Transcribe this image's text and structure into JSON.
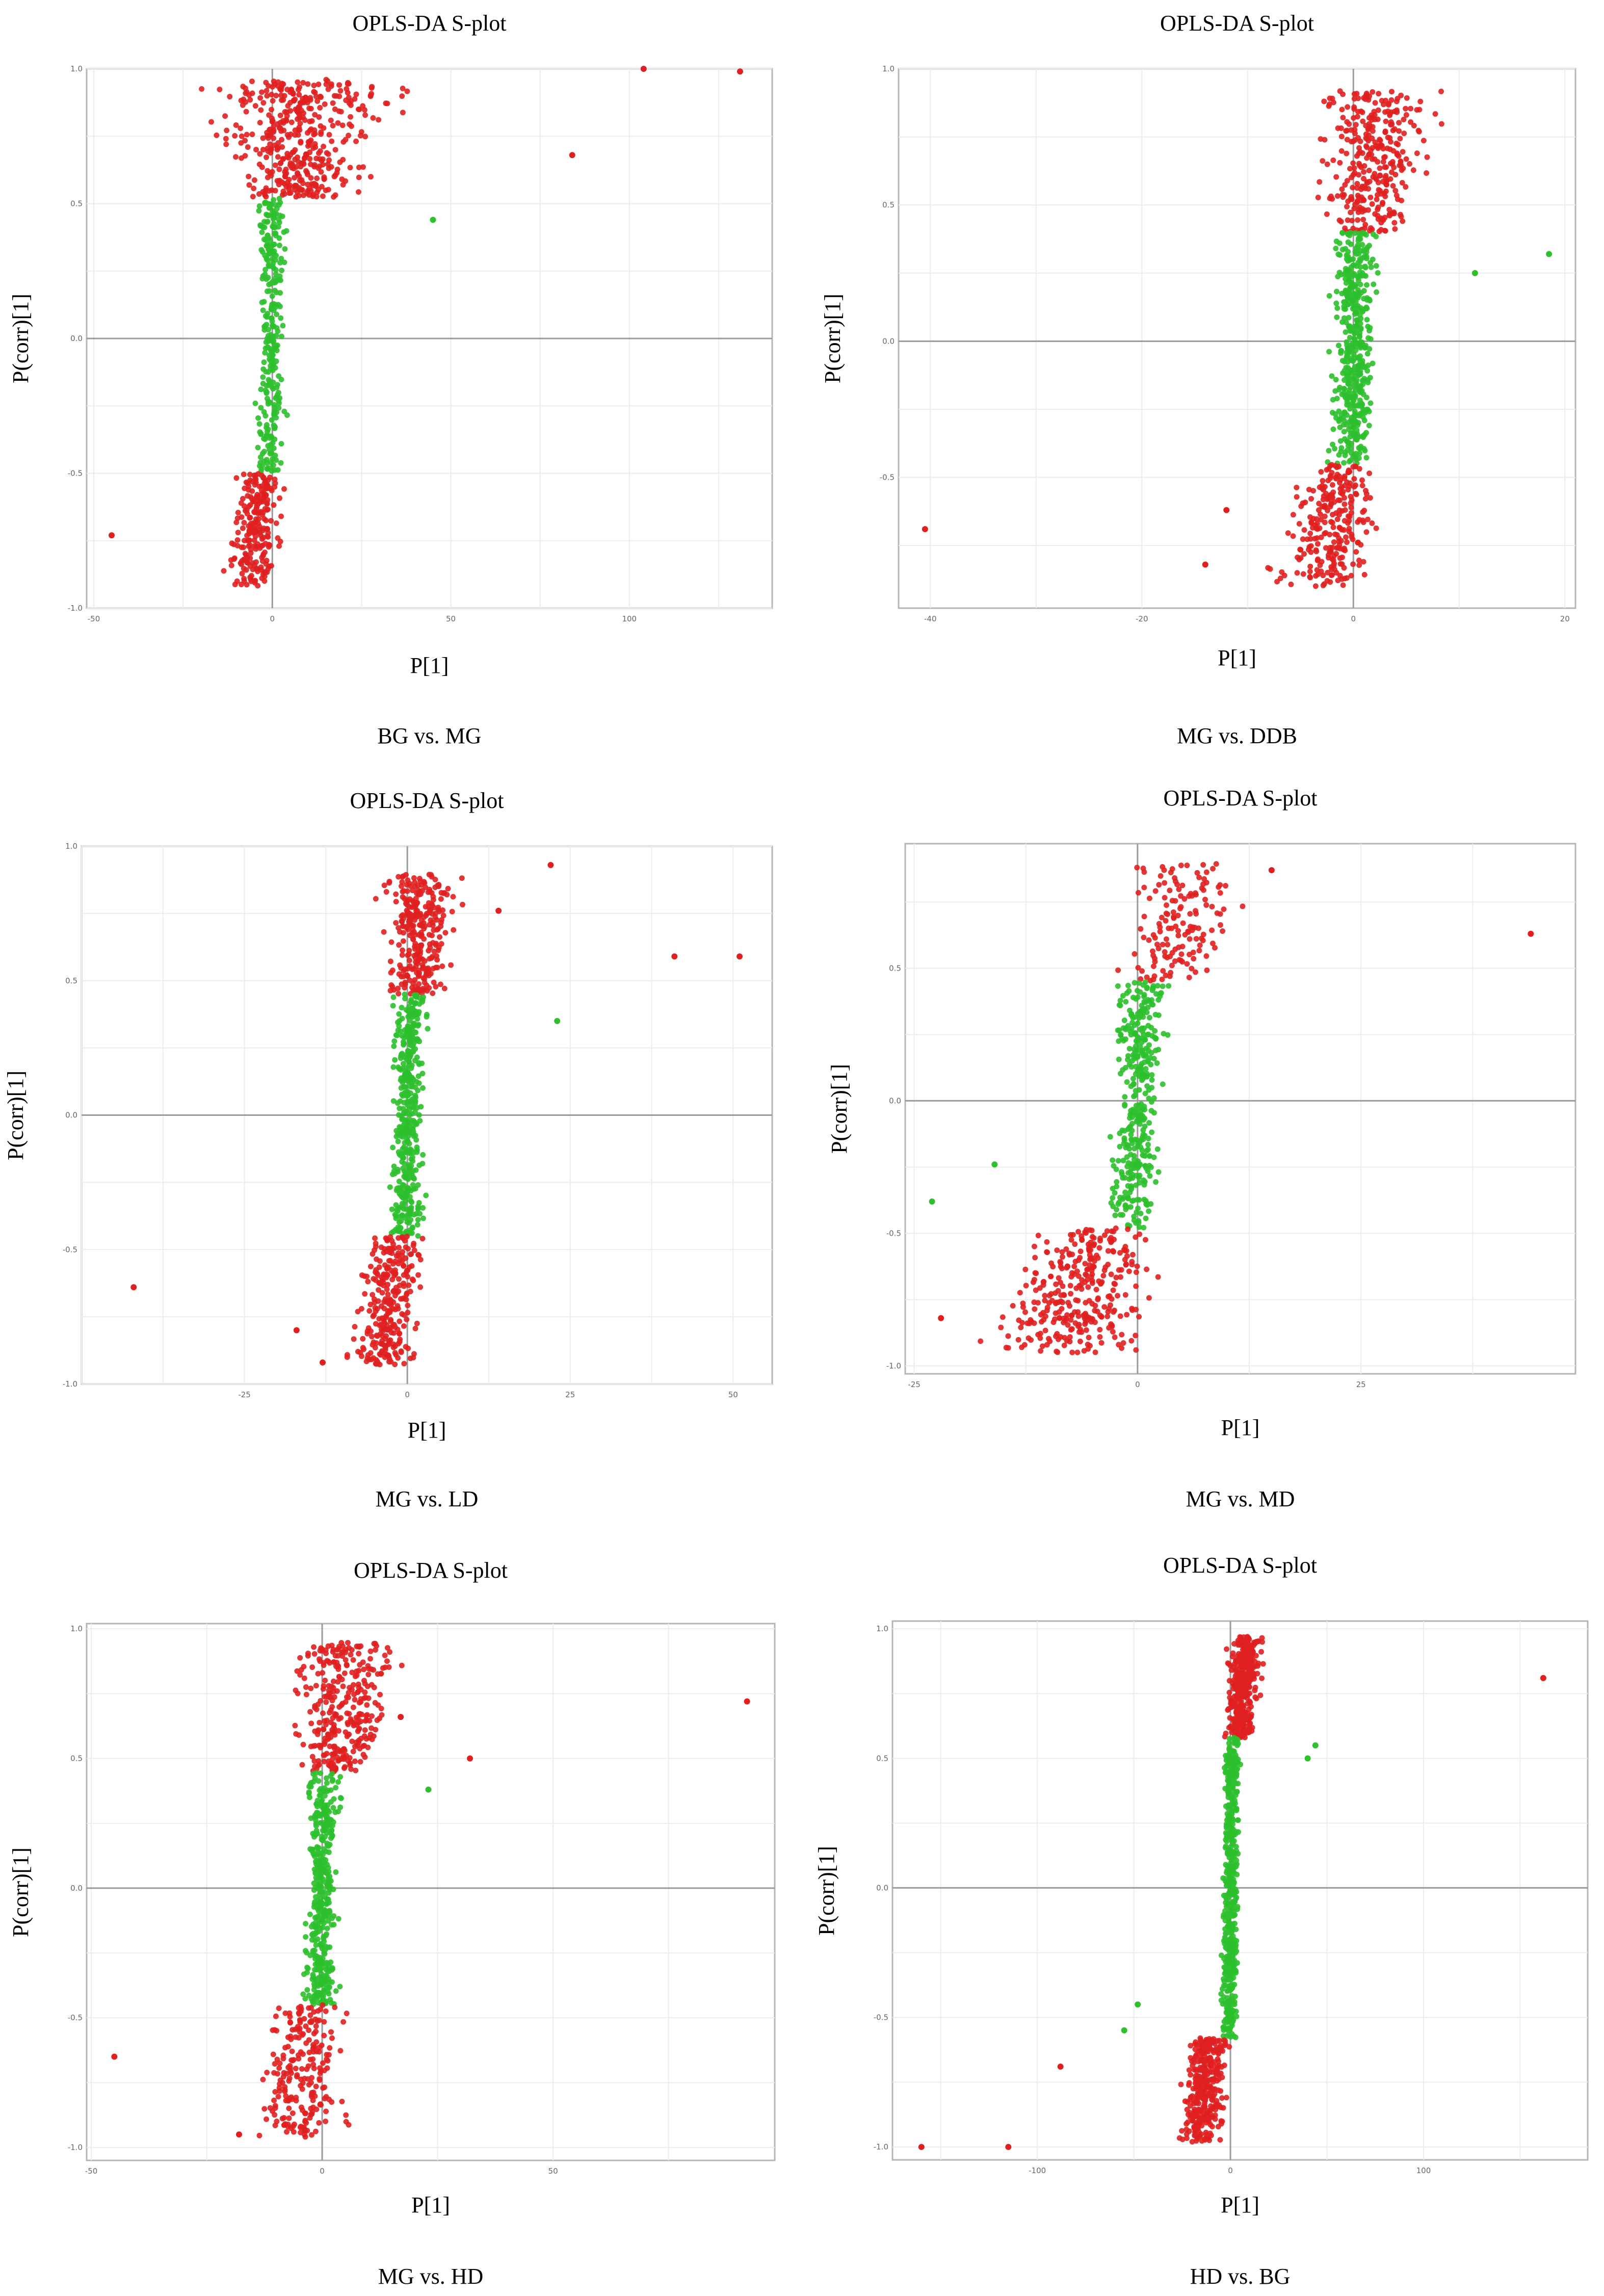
{
  "panels": [
    {
      "title": "OPLS-DA S-plot",
      "xlabel": "P[1]",
      "ylabel": "P(corr)[1]",
      "caption": "BG vs. MG",
      "chart_data": {
        "type": "scatter",
        "title": "OPLS-DA S-plot",
        "xlabel": "P[1]",
        "ylabel": "P(corr)[1]",
        "xlim": [
          -52,
          140
        ],
        "ylim": [
          -1.0,
          1.0
        ],
        "xticks": [
          -50,
          0,
          50,
          100
        ],
        "yticks": [
          -1.0,
          -0.5,
          0.0,
          0.5,
          1.0
        ],
        "xtick_labels": [
          "-50",
          "0",
          "50",
          "100"
        ],
        "ytick_labels": [
          "-1.0",
          "-0.5",
          "0.0",
          "0.5",
          "1.0"
        ],
        "grid": true,
        "point_colors": {
          "significant": "#e02020",
          "non_significant": "#2ec02e"
        },
        "clusters": [
          {
            "class": "significant",
            "n": 430,
            "y": [
              0.52,
              0.96
            ],
            "slope": 55,
            "width_low": 3,
            "width_high": 18,
            "x_offset": 2
          },
          {
            "class": "non_significant",
            "n": 300,
            "y": [
              -0.5,
              0.52
            ],
            "slope": 6,
            "width_low": 2,
            "width_high": 4,
            "x_offset": -1
          },
          {
            "class": "significant",
            "n": 230,
            "y": [
              -0.92,
              -0.5
            ],
            "slope": 3,
            "width_low": 3,
            "width_high": 5,
            "x_offset": -6
          }
        ],
        "points": [
          {
            "x": -45,
            "y": -0.73,
            "class": "significant"
          },
          {
            "x": 45,
            "y": 0.44,
            "class": "non_significant"
          },
          {
            "x": 84,
            "y": 0.68,
            "class": "significant"
          },
          {
            "x": 104,
            "y": 1.0,
            "class": "significant"
          },
          {
            "x": 131,
            "y": 0.99,
            "class": "significant"
          }
        ]
      }
    },
    {
      "title": "OPLS-DA S-plot",
      "xlabel": "P[1]",
      "ylabel": "P(corr)[1]",
      "caption": "MG vs. DDB",
      "chart_data": {
        "type": "scatter",
        "title": "OPLS-DA S-plot",
        "xlabel": "P[1]",
        "ylabel": "P(corr)[1]",
        "xlim": [
          -43,
          21
        ],
        "ylim": [
          -0.98,
          1.0
        ],
        "xticks": [
          -40,
          -20,
          0,
          20
        ],
        "yticks": [
          -0.5,
          0.0,
          0.5,
          1.0
        ],
        "xtick_labels": [
          "-40",
          "-20",
          "0",
          "20"
        ],
        "ytick_labels": [
          "-0.5",
          "0.0",
          "0.5",
          "1.0"
        ],
        "grid": true,
        "point_colors": {
          "significant": "#e02020",
          "non_significant": "#2ec02e"
        },
        "clusters": [
          {
            "class": "significant",
            "n": 330,
            "y": [
              0.4,
              0.92
            ],
            "slope": 10,
            "width_low": 1.5,
            "width_high": 4,
            "x_offset": 1.5
          },
          {
            "class": "non_significant",
            "n": 470,
            "y": [
              -0.45,
              0.4
            ],
            "slope": 4,
            "width_low": 1.2,
            "width_high": 1.6,
            "x_offset": 0
          },
          {
            "class": "significant",
            "n": 260,
            "y": [
              -0.9,
              -0.45
            ],
            "slope": 8,
            "width_low": 1.2,
            "width_high": 3.5,
            "x_offset": -2
          }
        ],
        "points": [
          {
            "x": -40.5,
            "y": -0.69,
            "class": "significant"
          },
          {
            "x": 11.5,
            "y": 0.25,
            "class": "non_significant"
          },
          {
            "x": 18.5,
            "y": 0.32,
            "class": "non_significant"
          },
          {
            "x": -12,
            "y": -0.62,
            "class": "significant"
          },
          {
            "x": -14,
            "y": -0.82,
            "class": "significant"
          }
        ]
      }
    },
    {
      "title": "OPLS-DA S-plot",
      "xlabel": "P[1]",
      "ylabel": "P(corr)[1]",
      "caption": "MG vs. LD",
      "chart_data": {
        "type": "scatter",
        "title": "OPLS-DA S-plot",
        "xlabel": "P[1]",
        "ylabel": "P(corr)[1]",
        "xlim": [
          -50,
          56
        ],
        "ylim": [
          -1.0,
          1.0
        ],
        "xticks": [
          -25,
          0,
          25,
          50
        ],
        "yticks": [
          -1.0,
          -0.5,
          0.0,
          0.5,
          1.0
        ],
        "xtick_labels": [
          "-25",
          "0",
          "25",
          "50"
        ],
        "ytick_labels": [
          "-1.0",
          "-0.5",
          "0.0",
          "0.5",
          "1.0"
        ],
        "grid": true,
        "point_colors": {
          "significant": "#e02020",
          "non_significant": "#2ec02e"
        },
        "clusters": [
          {
            "class": "significant",
            "n": 300,
            "y": [
              0.45,
              0.9
            ],
            "slope": 8,
            "width_low": 1.5,
            "width_high": 4.5,
            "x_offset": 1.5
          },
          {
            "class": "non_significant",
            "n": 430,
            "y": [
              -0.45,
              0.45
            ],
            "slope": 5,
            "width_low": 1.5,
            "width_high": 2.2,
            "x_offset": 0.5
          },
          {
            "class": "significant",
            "n": 280,
            "y": [
              -0.93,
              -0.45
            ],
            "slope": 9,
            "width_low": 2,
            "width_high": 4,
            "x_offset": -3
          }
        ],
        "points": [
          {
            "x": -42,
            "y": -0.64,
            "class": "significant"
          },
          {
            "x": 22,
            "y": 0.93,
            "class": "significant"
          },
          {
            "x": 14,
            "y": 0.76,
            "class": "significant"
          },
          {
            "x": 41,
            "y": 0.59,
            "class": "significant"
          },
          {
            "x": 51,
            "y": 0.59,
            "class": "significant"
          },
          {
            "x": 23,
            "y": 0.35,
            "class": "non_significant"
          },
          {
            "x": -17,
            "y": -0.8,
            "class": "significant"
          },
          {
            "x": -13,
            "y": -0.92,
            "class": "significant"
          }
        ]
      }
    },
    {
      "title": "OPLS-DA S-plot",
      "xlabel": "P[1]",
      "ylabel": "P(corr)[1]",
      "caption": "MG vs. MD",
      "chart_data": {
        "type": "scatter",
        "title": "OPLS-DA S-plot",
        "xlabel": "P[1]",
        "ylabel": "P(corr)[1]",
        "xlim": [
          -26,
          49
        ],
        "ylim": [
          -1.03,
          0.97
        ],
        "xticks": [
          -25,
          0,
          25
        ],
        "yticks": [
          -1.0,
          -0.5,
          0.0,
          0.5
        ],
        "xtick_labels": [
          "-25",
          "0",
          "25"
        ],
        "ytick_labels": [
          "-1.0",
          "-0.5",
          "0.0",
          "0.5"
        ],
        "grid": true,
        "point_colors": {
          "significant": "#e02020",
          "non_significant": "#2ec02e"
        },
        "clusters": [
          {
            "class": "significant",
            "n": 150,
            "y": [
              0.45,
              0.9
            ],
            "slope": 12,
            "width_low": 2,
            "width_high": 5,
            "x_offset": 5
          },
          {
            "class": "non_significant",
            "n": 380,
            "y": [
              -0.48,
              0.45
            ],
            "slope": 9,
            "width_low": 1.5,
            "width_high": 2.5,
            "x_offset": 0
          },
          {
            "class": "significant",
            "n": 330,
            "y": [
              -0.95,
              -0.48
            ],
            "slope": 20,
            "width_low": 3,
            "width_high": 6,
            "x_offset": -6
          }
        ],
        "points": [
          {
            "x": -23,
            "y": -0.38,
            "class": "non_significant"
          },
          {
            "x": -16,
            "y": -0.24,
            "class": "non_significant"
          },
          {
            "x": 15,
            "y": 0.87,
            "class": "significant"
          },
          {
            "x": 44,
            "y": 0.63,
            "class": "significant"
          },
          {
            "x": -22,
            "y": -0.82,
            "class": "significant"
          }
        ]
      }
    },
    {
      "title": "OPLS-DA S-plot",
      "xlabel": "P[1]",
      "ylabel": "P(corr)[1]",
      "caption": "MG vs. HD",
      "chart_data": {
        "type": "scatter",
        "title": "OPLS-DA S-plot",
        "xlabel": "P[1]",
        "ylabel": "P(corr)[1]",
        "xlim": [
          -51,
          98
        ],
        "ylim": [
          -1.05,
          1.02
        ],
        "xticks": [
          -50,
          0,
          50
        ],
        "yticks": [
          -1.0,
          -0.5,
          0.0,
          0.5,
          1.0
        ],
        "xtick_labels": [
          "-50",
          "0",
          "50"
        ],
        "ytick_labels": [
          "-1.0",
          "-0.5",
          "0.0",
          "0.5",
          "1.0"
        ],
        "grid": true,
        "point_colors": {
          "significant": "#e02020",
          "non_significant": "#2ec02e"
        },
        "clusters": [
          {
            "class": "significant",
            "n": 330,
            "y": [
              0.45,
              0.95
            ],
            "slope": 25,
            "width_low": 2,
            "width_high": 9,
            "x_offset": 3
          },
          {
            "class": "non_significant",
            "n": 420,
            "y": [
              -0.45,
              0.45
            ],
            "slope": 9,
            "width_low": 2,
            "width_high": 3,
            "x_offset": 0
          },
          {
            "class": "significant",
            "n": 230,
            "y": [
              -0.96,
              -0.45
            ],
            "slope": 8,
            "width_low": 3,
            "width_high": 7,
            "x_offset": -5
          }
        ],
        "points": [
          {
            "x": -45,
            "y": -0.65,
            "class": "significant"
          },
          {
            "x": 32,
            "y": 0.5,
            "class": "significant"
          },
          {
            "x": 23,
            "y": 0.38,
            "class": "non_significant"
          },
          {
            "x": 92,
            "y": 0.72,
            "class": "significant"
          },
          {
            "x": 17,
            "y": 0.66,
            "class": "significant"
          },
          {
            "x": -18,
            "y": -0.95,
            "class": "significant"
          }
        ]
      }
    },
    {
      "title": "OPLS-DA S-plot",
      "xlabel": "P[1]",
      "ylabel": "P(corr)[1]",
      "caption": "HD vs. BG",
      "chart_data": {
        "type": "scatter",
        "title": "OPLS-DA S-plot",
        "xlabel": "P[1]",
        "ylabel": "P(corr)[1]",
        "xlim": [
          -175,
          185
        ],
        "ylim": [
          -1.05,
          1.03
        ],
        "xticks": [
          -100,
          0,
          100
        ],
        "yticks": [
          -1.0,
          -0.5,
          0.0,
          0.5,
          1.0
        ],
        "xtick_labels": [
          "-100",
          "0",
          "100"
        ],
        "ytick_labels": [
          "-1.0",
          "-0.5",
          "0.0",
          "0.5",
          "1.0"
        ],
        "grid": true,
        "point_colors": {
          "significant": "#e02020",
          "non_significant": "#2ec02e"
        },
        "clusters": [
          {
            "class": "significant",
            "n": 360,
            "y": [
              0.58,
              0.97
            ],
            "slope": 5,
            "width_low": 4,
            "width_high": 6,
            "x_offset": 8
          },
          {
            "class": "non_significant",
            "n": 520,
            "y": [
              -0.58,
              0.58
            ],
            "slope": 8,
            "width_low": 2.5,
            "width_high": 3,
            "x_offset": 0
          },
          {
            "class": "significant",
            "n": 330,
            "y": [
              -0.98,
              -0.58
            ],
            "slope": 14,
            "width_low": 5,
            "width_high": 8,
            "x_offset": -15
          }
        ],
        "points": [
          {
            "x": -160,
            "y": -1.0,
            "class": "significant"
          },
          {
            "x": -115,
            "y": -1.0,
            "class": "significant"
          },
          {
            "x": -88,
            "y": -0.69,
            "class": "significant"
          },
          {
            "x": -55,
            "y": -0.55,
            "class": "non_significant"
          },
          {
            "x": -48,
            "y": -0.45,
            "class": "non_significant"
          },
          {
            "x": 40,
            "y": 0.5,
            "class": "non_significant"
          },
          {
            "x": 44,
            "y": 0.55,
            "class": "non_significant"
          },
          {
            "x": 162,
            "y": 0.81,
            "class": "significant"
          }
        ]
      }
    }
  ]
}
